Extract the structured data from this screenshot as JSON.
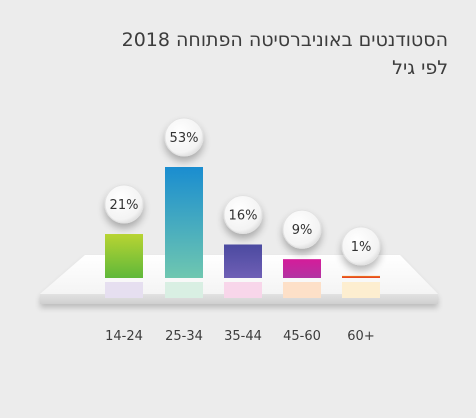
{
  "title_line1": "הסטודנטים באוניברסיטה הפתוחה 2018",
  "title_line2": "לפי גיל",
  "chart_data": {
    "type": "bar",
    "categories": [
      "14-24",
      "25-34",
      "35-44",
      "45-60",
      "60+"
    ],
    "values": [
      21,
      53,
      16,
      9,
      1
    ],
    "value_labels": [
      "21%",
      "53%",
      "16%",
      "9%",
      "1%"
    ],
    "unit": "%",
    "ylim": [
      0,
      53
    ],
    "colors": [
      [
        "#b8d432",
        "#5fb83a"
      ],
      [
        "#1a8dd0",
        "#6fc7b0"
      ],
      [
        "#4b4aa0",
        "#6f5fb5"
      ],
      [
        "#d51c9a",
        "#b233a2"
      ],
      [
        "#f07a1a",
        "#e23a2a"
      ]
    ],
    "reflection_colors": [
      "#e6dff0",
      "#d9efe3",
      "#f8d6ea",
      "#fde0c8",
      "#fdeed0"
    ],
    "grid": false,
    "legend": "none"
  }
}
